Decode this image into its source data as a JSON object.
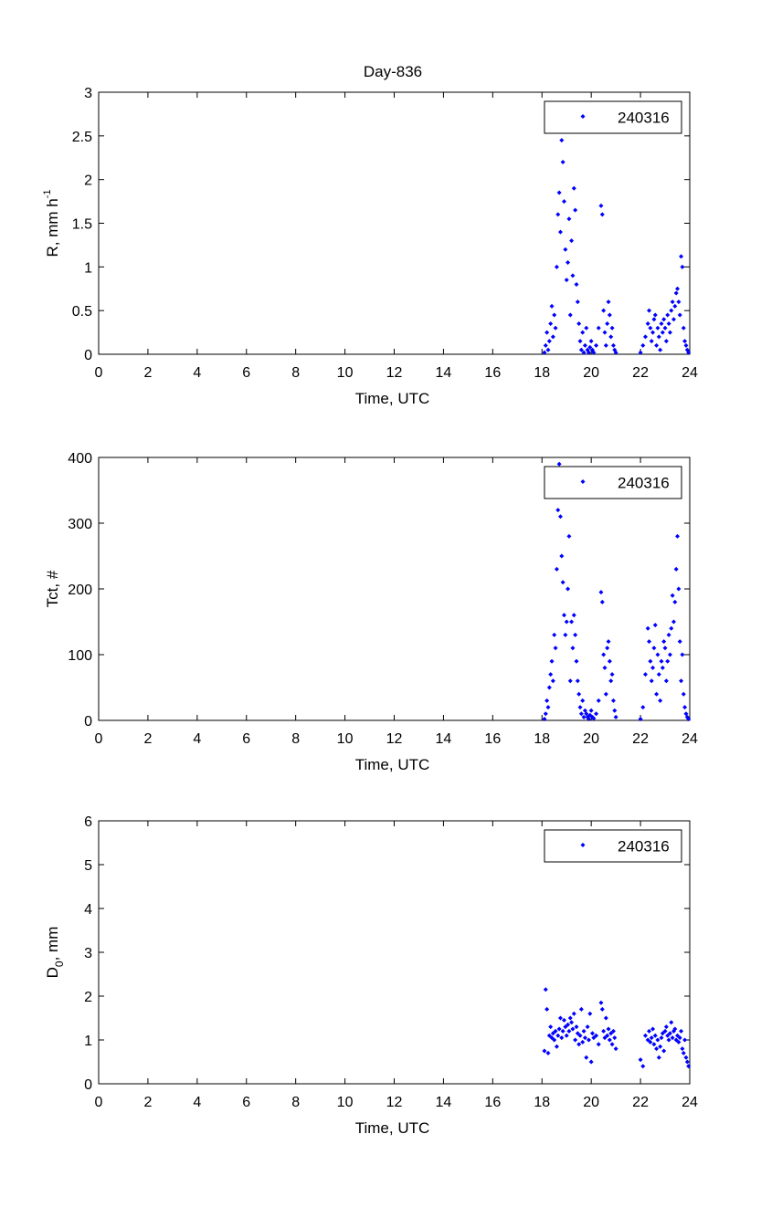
{
  "figure": {
    "title": "Day-836"
  },
  "colors": {
    "marker": "#0000ff",
    "axes": "#000000",
    "background": "#ffffff"
  },
  "chart_data": [
    {
      "type": "scatter",
      "ylabel_main": "R, mm h",
      "ylabel_sup": "-1",
      "xlabel": "Time, UTC",
      "xlim": [
        0,
        24
      ],
      "ylim": [
        0,
        3
      ],
      "xticks": [
        0,
        2,
        4,
        6,
        8,
        10,
        12,
        14,
        16,
        18,
        20,
        22,
        24
      ],
      "yticks": [
        0,
        0.5,
        1,
        1.5,
        2,
        2.5,
        3
      ],
      "ytick_labels": [
        "0",
        "0.5",
        "1",
        "1.5",
        "2",
        "2.5",
        "3"
      ],
      "legend": {
        "label": "240316",
        "position": "top-right"
      },
      "series": [
        {
          "name": "240316",
          "x": [
            18.1,
            18.15,
            18.2,
            18.25,
            18.3,
            18.35,
            18.4,
            18.45,
            18.5,
            18.55,
            18.6,
            18.65,
            18.7,
            18.75,
            18.8,
            18.85,
            18.9,
            18.95,
            19.0,
            19.05,
            19.1,
            19.15,
            19.2,
            19.25,
            19.3,
            19.35,
            19.4,
            19.45,
            19.5,
            19.55,
            19.6,
            19.65,
            19.7,
            19.75,
            19.8,
            19.85,
            19.9,
            19.95,
            20.0,
            20.05,
            20.1,
            20.2,
            20.3,
            20.4,
            20.45,
            20.5,
            20.55,
            20.6,
            20.65,
            20.7,
            20.75,
            20.8,
            20.85,
            20.9,
            20.95,
            21.0,
            22.0,
            22.1,
            22.2,
            22.3,
            22.35,
            22.4,
            22.45,
            22.5,
            22.55,
            22.6,
            22.65,
            22.7,
            22.75,
            22.8,
            22.85,
            22.9,
            22.95,
            23.0,
            23.05,
            23.1,
            23.15,
            23.2,
            23.25,
            23.3,
            23.35,
            23.4,
            23.45,
            23.5,
            23.55,
            23.6,
            23.65,
            23.7,
            23.75,
            23.8,
            23.85,
            23.9,
            23.95
          ],
          "y": [
            0.02,
            0.1,
            0.25,
            0.05,
            0.15,
            0.35,
            0.55,
            0.2,
            0.45,
            0.3,
            1.0,
            1.6,
            1.85,
            1.4,
            2.45,
            2.2,
            1.75,
            1.2,
            0.85,
            1.05,
            1.55,
            0.45,
            1.3,
            0.9,
            1.9,
            1.65,
            0.8,
            0.6,
            0.35,
            0.15,
            0.05,
            0.25,
            0.02,
            0.1,
            0.3,
            0.05,
            0.02,
            0.08,
            0.15,
            0.05,
            0.02,
            0.1,
            0.3,
            1.7,
            1.6,
            0.5,
            0.25,
            0.1,
            0.35,
            0.6,
            0.45,
            0.2,
            0.3,
            0.1,
            0.05,
            0.02,
            0.02,
            0.1,
            0.2,
            0.35,
            0.5,
            0.3,
            0.15,
            0.25,
            0.4,
            0.45,
            0.1,
            0.3,
            0.2,
            0.05,
            0.35,
            0.25,
            0.4,
            0.3,
            0.15,
            0.45,
            0.35,
            0.25,
            0.5,
            0.6,
            0.4,
            0.55,
            0.7,
            0.75,
            0.6,
            0.45,
            1.12,
            1.0,
            0.3,
            0.15,
            0.1,
            0.05,
            0.02
          ]
        }
      ]
    },
    {
      "type": "scatter",
      "ylabel_main": "Tct, #",
      "ylabel_sup": "",
      "xlabel": "Time, UTC",
      "xlim": [
        0,
        24
      ],
      "ylim": [
        0,
        400
      ],
      "xticks": [
        0,
        2,
        4,
        6,
        8,
        10,
        12,
        14,
        16,
        18,
        20,
        22,
        24
      ],
      "yticks": [
        0,
        100,
        200,
        300,
        400
      ],
      "ytick_labels": [
        "0",
        "100",
        "200",
        "300",
        "400"
      ],
      "legend": {
        "label": "240316",
        "position": "top-right"
      },
      "series": [
        {
          "name": "240316",
          "x": [
            18.1,
            18.15,
            18.2,
            18.25,
            18.3,
            18.35,
            18.4,
            18.45,
            18.5,
            18.55,
            18.6,
            18.65,
            18.7,
            18.75,
            18.8,
            18.85,
            18.9,
            18.95,
            19.0,
            19.05,
            19.1,
            19.15,
            19.2,
            19.25,
            19.3,
            19.35,
            19.4,
            19.45,
            19.5,
            19.55,
            19.6,
            19.65,
            19.7,
            19.75,
            19.8,
            19.85,
            19.9,
            19.95,
            20.0,
            20.05,
            20.1,
            20.2,
            20.3,
            20.4,
            20.45,
            20.5,
            20.55,
            20.6,
            20.65,
            20.7,
            20.75,
            20.8,
            20.85,
            20.9,
            20.95,
            21.0,
            22.0,
            22.1,
            22.2,
            22.3,
            22.35,
            22.4,
            22.45,
            22.5,
            22.55,
            22.6,
            22.65,
            22.7,
            22.75,
            22.8,
            22.85,
            22.9,
            22.95,
            23.0,
            23.05,
            23.1,
            23.15,
            23.2,
            23.25,
            23.3,
            23.35,
            23.4,
            23.45,
            23.5,
            23.55,
            23.6,
            23.65,
            23.7,
            23.75,
            23.8,
            23.85,
            23.9,
            23.95
          ],
          "y": [
            2,
            10,
            30,
            20,
            50,
            70,
            90,
            60,
            130,
            110,
            230,
            320,
            390,
            310,
            250,
            210,
            160,
            130,
            150,
            200,
            280,
            60,
            150,
            110,
            160,
            130,
            90,
            60,
            40,
            20,
            10,
            30,
            5,
            15,
            10,
            5,
            2,
            8,
            15,
            5,
            3,
            10,
            30,
            195,
            180,
            100,
            80,
            40,
            110,
            120,
            90,
            60,
            70,
            30,
            15,
            5,
            2,
            20,
            70,
            140,
            120,
            90,
            60,
            80,
            110,
            145,
            40,
            100,
            70,
            30,
            90,
            80,
            120,
            110,
            60,
            90,
            130,
            100,
            140,
            190,
            150,
            180,
            230,
            280,
            200,
            120,
            60,
            100,
            40,
            20,
            10,
            5,
            2
          ]
        }
      ]
    },
    {
      "type": "scatter",
      "ylabel_main": "D",
      "ylabel_sub": "0",
      "ylabel_rest": ", mm",
      "xlabel": "Time, UTC",
      "xlim": [
        0,
        24
      ],
      "ylim": [
        0,
        6
      ],
      "xticks": [
        0,
        2,
        4,
        6,
        8,
        10,
        12,
        14,
        16,
        18,
        20,
        22,
        24
      ],
      "yticks": [
        0,
        1,
        2,
        3,
        4,
        5,
        6
      ],
      "ytick_labels": [
        "0",
        "1",
        "2",
        "3",
        "4",
        "5",
        "6"
      ],
      "legend": {
        "label": "240316",
        "position": "top-right"
      },
      "series": [
        {
          "name": "240316",
          "x": [
            18.1,
            18.15,
            18.2,
            18.25,
            18.3,
            18.35,
            18.4,
            18.45,
            18.5,
            18.55,
            18.6,
            18.65,
            18.7,
            18.75,
            18.8,
            18.85,
            18.9,
            18.95,
            19.0,
            19.05,
            19.1,
            19.15,
            19.2,
            19.25,
            19.3,
            19.35,
            19.4,
            19.45,
            19.5,
            19.55,
            19.6,
            19.65,
            19.7,
            19.75,
            19.8,
            19.85,
            19.9,
            19.95,
            20.0,
            20.05,
            20.1,
            20.2,
            20.3,
            20.4,
            20.45,
            20.5,
            20.55,
            20.6,
            20.65,
            20.7,
            20.75,
            20.8,
            20.85,
            20.9,
            20.95,
            21.0,
            22.0,
            22.1,
            22.2,
            22.3,
            22.35,
            22.4,
            22.45,
            22.5,
            22.55,
            22.6,
            22.65,
            22.7,
            22.75,
            22.8,
            22.85,
            22.9,
            22.95,
            23.0,
            23.05,
            23.1,
            23.15,
            23.2,
            23.25,
            23.3,
            23.35,
            23.4,
            23.45,
            23.5,
            23.55,
            23.6,
            23.65,
            23.7,
            23.75,
            23.8,
            23.85,
            23.9,
            23.95
          ],
          "y": [
            0.75,
            2.15,
            1.7,
            0.7,
            1.1,
            1.3,
            1.05,
            1.15,
            1.0,
            1.2,
            0.85,
            1.1,
            1.25,
            1.5,
            1.05,
            1.2,
            1.45,
            1.3,
            1.1,
            1.35,
            1.2,
            1.5,
            1.4,
            1.25,
            1.6,
            1.0,
            1.3,
            1.15,
            0.9,
            1.1,
            1.7,
            0.95,
            1.2,
            1.05,
            0.6,
            1.3,
            1.0,
            1.6,
            0.5,
            1.15,
            1.05,
            1.1,
            0.9,
            1.85,
            1.7,
            1.2,
            1.05,
            1.5,
            1.1,
            1.25,
            1.0,
            1.15,
            0.9,
            1.2,
            1.05,
            0.8,
            0.55,
            0.4,
            1.1,
            1.0,
            1.2,
            0.95,
            1.05,
            1.25,
            0.9,
            1.1,
            0.8,
            1.0,
            0.6,
            0.85,
            1.05,
            1.15,
            0.75,
            1.2,
            1.3,
            1.1,
            1.0,
            1.15,
            1.4,
            1.05,
            1.2,
            1.25,
            1.0,
            1.1,
            0.95,
            1.05,
            1.2,
            0.8,
            0.7,
            1.0,
            0.6,
            0.5,
            0.4
          ]
        }
      ]
    }
  ]
}
